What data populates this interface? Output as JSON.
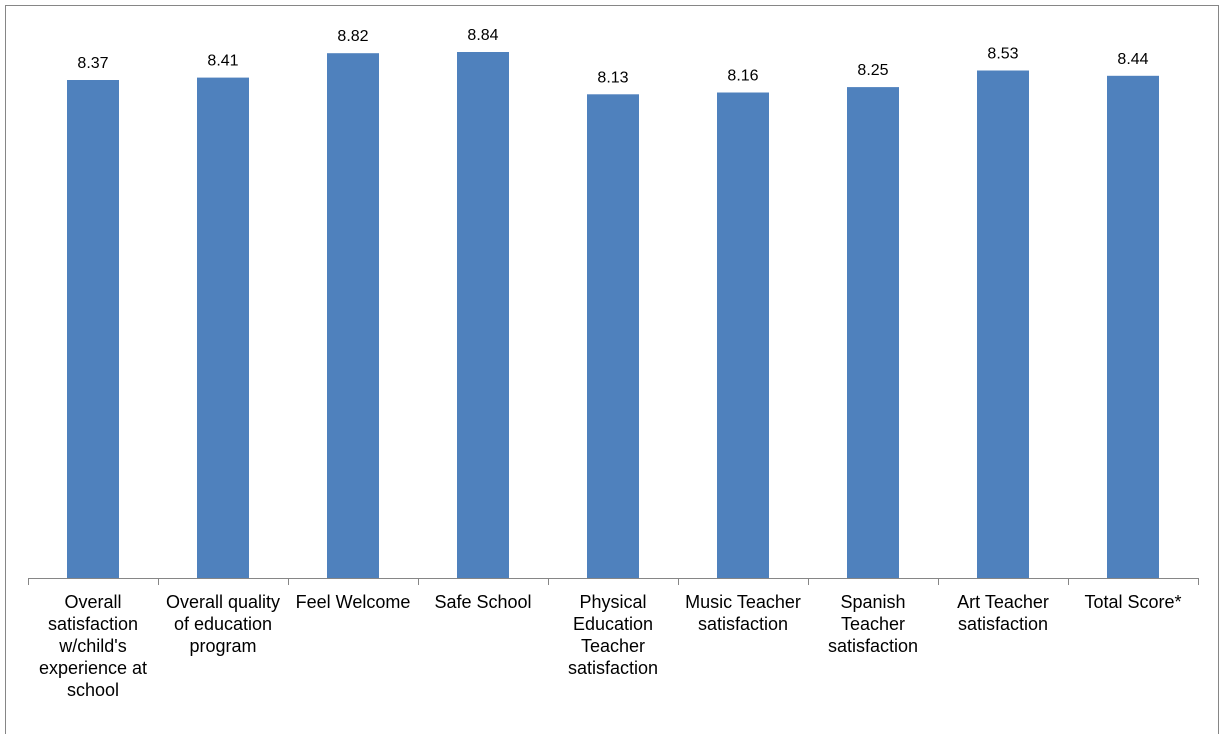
{
  "chart_data": {
    "type": "bar",
    "categories": [
      "Overall\nsatisfaction\nw/child's\nexperience at\nschool",
      "Overall quality\nof education\nprogram",
      "Feel Welcome",
      "Safe School",
      "Physical\nEducation\nTeacher\nsatisfaction",
      "Music Teacher\nsatisfaction",
      "Spanish\nTeacher\nsatisfaction",
      "Art Teacher\nsatisfaction",
      "Total Score*"
    ],
    "values": [
      8.37,
      8.41,
      8.82,
      8.84,
      8.13,
      8.16,
      8.25,
      8.53,
      8.44
    ],
    "value_labels": [
      "8.37",
      "8.41",
      "8.82",
      "8.84",
      "8.13",
      "8.16",
      "8.25",
      "8.53",
      "8.44"
    ],
    "title": "",
    "xlabel": "",
    "ylabel": "",
    "ylim": [
      0,
      10
    ],
    "grid": false,
    "legend": "none",
    "colors": {
      "bar": "#4F81BD",
      "axis": "#868686"
    }
  }
}
